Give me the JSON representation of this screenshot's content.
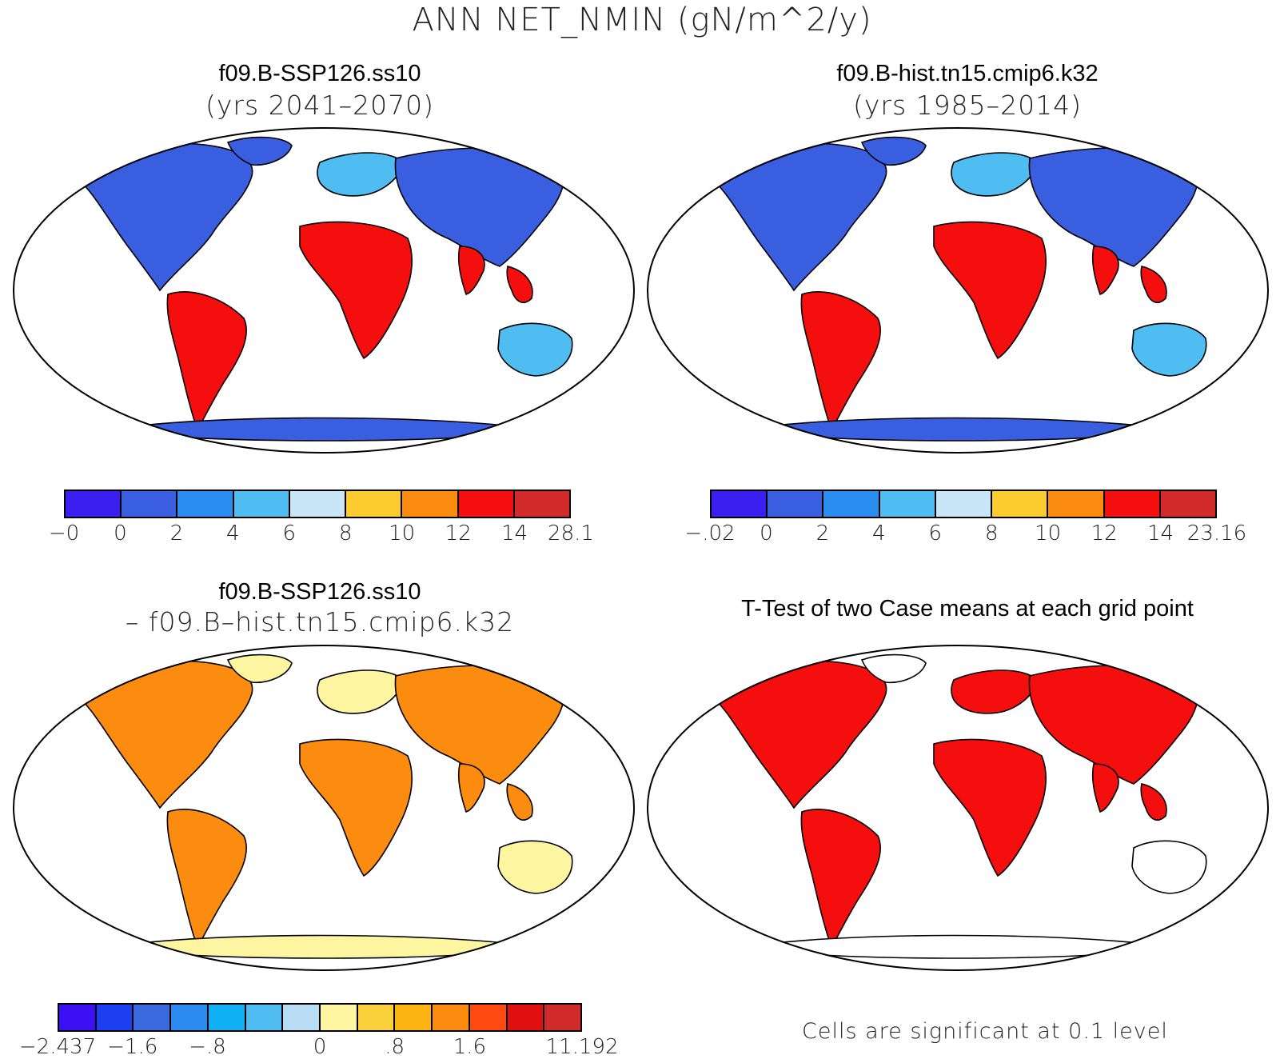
{
  "title": "ANN NET_NMIN (gN/m^2/y)",
  "panels": {
    "top_left": {
      "title": "f09.B-SSP126.ss10",
      "subtitle": "(yrs 2041–2070)"
    },
    "top_right": {
      "title": "f09.B-hist.tn15.cmip6.k32",
      "subtitle": "(yrs 1985–2014)"
    },
    "bottom_left": {
      "title": "f09.B-SSP126.ss10",
      "subtitle": "– f09.B–hist.tn15.cmip6.k32"
    },
    "bottom_right": {
      "title": "T-Test of two Case means at each grid point"
    }
  },
  "colorbars": {
    "top_left": {
      "colors": [
        "#3b1ff0",
        "#3a5ee0",
        "#2a8df0",
        "#4fbcf2",
        "#c8e6f8",
        "#fccb2e",
        "#fc8c10",
        "#f50e0e",
        "#d22a2a"
      ],
      "labels": [
        "−0",
        "0",
        "2",
        "4",
        "6",
        "8",
        "10",
        "12",
        "14",
        "28.1"
      ]
    },
    "top_right": {
      "colors": [
        "#3b1ff0",
        "#3a5ee0",
        "#2a8df0",
        "#4fbcf2",
        "#c8e6f8",
        "#fccb2e",
        "#fc8c10",
        "#f50e0e",
        "#d22a2a"
      ],
      "labels": [
        "−.02",
        "0",
        "2",
        "4",
        "6",
        "8",
        "10",
        "12",
        "14",
        "23.16"
      ]
    },
    "bottom_left": {
      "colors": [
        "#3b10f5",
        "#1c3ff0",
        "#3a6ae0",
        "#2a8af0",
        "#10b0f5",
        "#4fbcf2",
        "#b8dcf4",
        "#fdf5a0",
        "#fcd23c",
        "#fcb414",
        "#fc8c10",
        "#fc4a10",
        "#e01010",
        "#d02a2a"
      ],
      "labels": [
        "−2.437",
        "−1.6",
        "−.8",
        "0",
        ".8",
        "1.6",
        "11.192"
      ]
    }
  },
  "note": "Cells are significant at 0.1 level",
  "map_colors": {
    "land_low": "#3a5ee0",
    "land_mid": "#4fbcf2",
    "land_high": "#f50e0e",
    "diff_low": "#fdf5a0",
    "diff_high": "#fc8c10",
    "signif": "#f50e0e"
  }
}
